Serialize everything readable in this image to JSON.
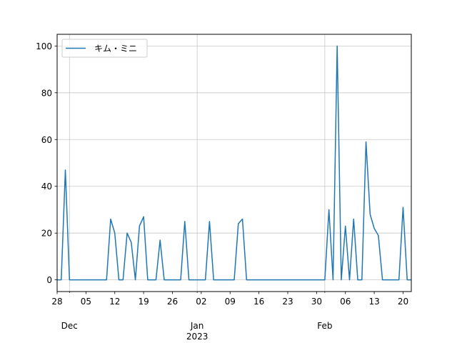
{
  "chart_data": {
    "type": "line",
    "title": "",
    "xlabel": "",
    "ylabel": "",
    "x_start": "2022-11-28",
    "x_end": "2023-02-22",
    "ylim": [
      -5,
      105
    ],
    "yticks": [
      0,
      20,
      40,
      60,
      80,
      100
    ],
    "grid": true,
    "legend": {
      "position": "top-left"
    },
    "x_major_ticks": [
      {
        "date": "2022-11-28",
        "label": "28"
      },
      {
        "date": "2022-12-05",
        "label": "05"
      },
      {
        "date": "2022-12-12",
        "label": "12"
      },
      {
        "date": "2022-12-19",
        "label": "19"
      },
      {
        "date": "2022-12-26",
        "label": "26"
      },
      {
        "date": "2023-01-02",
        "label": "02"
      },
      {
        "date": "2023-01-09",
        "label": "09"
      },
      {
        "date": "2023-01-16",
        "label": "16"
      },
      {
        "date": "2023-01-23",
        "label": "23"
      },
      {
        "date": "2023-01-30",
        "label": "30"
      },
      {
        "date": "2023-02-06",
        "label": "06"
      },
      {
        "date": "2023-02-13",
        "label": "13"
      },
      {
        "date": "2023-02-20",
        "label": "20"
      }
    ],
    "x_month_labels": [
      {
        "date": "2022-12-01",
        "label": "Dec"
      },
      {
        "date": "2023-01-01",
        "label": "Jan"
      },
      {
        "date": "2023-02-01",
        "label": "Feb"
      }
    ],
    "x_year_labels": [
      {
        "date": "2023-01-01",
        "label": "2023"
      }
    ],
    "x_month_gridlines": [
      "2022-12-01",
      "2023-01-01",
      "2023-02-01"
    ],
    "series": [
      {
        "name": "キム・ミニ",
        "color": "#1f77b4",
        "points": [
          [
            "2022-11-28",
            0
          ],
          [
            "2022-11-29",
            0
          ],
          [
            "2022-11-30",
            47
          ],
          [
            "2022-12-01",
            0
          ],
          [
            "2022-12-02",
            0
          ],
          [
            "2022-12-03",
            0
          ],
          [
            "2022-12-04",
            0
          ],
          [
            "2022-12-05",
            0
          ],
          [
            "2022-12-06",
            0
          ],
          [
            "2022-12-07",
            0
          ],
          [
            "2022-12-08",
            0
          ],
          [
            "2022-12-09",
            0
          ],
          [
            "2022-12-10",
            0
          ],
          [
            "2022-12-11",
            26
          ],
          [
            "2022-12-12",
            20
          ],
          [
            "2022-12-13",
            0
          ],
          [
            "2022-12-14",
            0
          ],
          [
            "2022-12-15",
            20
          ],
          [
            "2022-12-16",
            16
          ],
          [
            "2022-12-17",
            0
          ],
          [
            "2022-12-18",
            23
          ],
          [
            "2022-12-19",
            27
          ],
          [
            "2022-12-20",
            0
          ],
          [
            "2022-12-21",
            0
          ],
          [
            "2022-12-22",
            0
          ],
          [
            "2022-12-23",
            17
          ],
          [
            "2022-12-24",
            0
          ],
          [
            "2022-12-25",
            0
          ],
          [
            "2022-12-26",
            0
          ],
          [
            "2022-12-27",
            0
          ],
          [
            "2022-12-28",
            0
          ],
          [
            "2022-12-29",
            25
          ],
          [
            "2022-12-30",
            0
          ],
          [
            "2022-12-31",
            0
          ],
          [
            "2023-01-01",
            0
          ],
          [
            "2023-01-02",
            0
          ],
          [
            "2023-01-03",
            0
          ],
          [
            "2023-01-04",
            25
          ],
          [
            "2023-01-05",
            0
          ],
          [
            "2023-01-06",
            0
          ],
          [
            "2023-01-07",
            0
          ],
          [
            "2023-01-08",
            0
          ],
          [
            "2023-01-09",
            0
          ],
          [
            "2023-01-10",
            0
          ],
          [
            "2023-01-11",
            24
          ],
          [
            "2023-01-12",
            26
          ],
          [
            "2023-01-13",
            0
          ],
          [
            "2023-01-14",
            0
          ],
          [
            "2023-01-15",
            0
          ],
          [
            "2023-01-16",
            0
          ],
          [
            "2023-01-17",
            0
          ],
          [
            "2023-01-18",
            0
          ],
          [
            "2023-01-19",
            0
          ],
          [
            "2023-01-20",
            0
          ],
          [
            "2023-01-21",
            0
          ],
          [
            "2023-01-22",
            0
          ],
          [
            "2023-01-23",
            0
          ],
          [
            "2023-01-24",
            0
          ],
          [
            "2023-01-25",
            0
          ],
          [
            "2023-01-26",
            0
          ],
          [
            "2023-01-27",
            0
          ],
          [
            "2023-01-28",
            0
          ],
          [
            "2023-01-29",
            0
          ],
          [
            "2023-01-30",
            0
          ],
          [
            "2023-01-31",
            0
          ],
          [
            "2023-02-01",
            0
          ],
          [
            "2023-02-02",
            30
          ],
          [
            "2023-02-03",
            0
          ],
          [
            "2023-02-04",
            100
          ],
          [
            "2023-02-05",
            0
          ],
          [
            "2023-02-06",
            23
          ],
          [
            "2023-02-07",
            0
          ],
          [
            "2023-02-08",
            26
          ],
          [
            "2023-02-09",
            0
          ],
          [
            "2023-02-10",
            0
          ],
          [
            "2023-02-11",
            59
          ],
          [
            "2023-02-12",
            28
          ],
          [
            "2023-02-13",
            22
          ],
          [
            "2023-02-14",
            19
          ],
          [
            "2023-02-15",
            0
          ],
          [
            "2023-02-16",
            0
          ],
          [
            "2023-02-17",
            0
          ],
          [
            "2023-02-18",
            0
          ],
          [
            "2023-02-19",
            0
          ],
          [
            "2023-02-20",
            31
          ],
          [
            "2023-02-21",
            0
          ],
          [
            "2023-02-22",
            0
          ]
        ]
      }
    ]
  }
}
